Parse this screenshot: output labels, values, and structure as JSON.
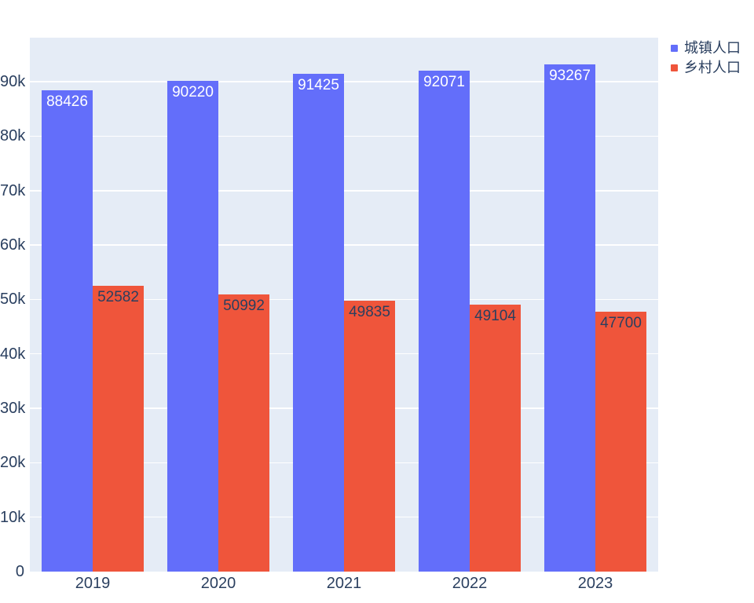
{
  "chart_data": {
    "type": "bar",
    "title": "",
    "xlabel": "",
    "ylabel": "",
    "categories": [
      "2019",
      "2020",
      "2021",
      "2022",
      "2023"
    ],
    "series": [
      {
        "key": "urban-population",
        "name": "城镇人口",
        "values": [
          88426,
          90220,
          91425,
          92071,
          93267
        ],
        "color": "#636EFA",
        "label_color": "#ffffff"
      },
      {
        "key": "rural-population",
        "name": "乡村人口",
        "values": [
          52582,
          50992,
          49835,
          49104,
          47700
        ],
        "color": "#EF553B",
        "label_color": "#2a3f5f"
      }
    ],
    "ylim": [
      0,
      98100
    ],
    "yticks": [
      {
        "value": 0,
        "label": "0"
      },
      {
        "value": 10000,
        "label": "10k"
      },
      {
        "value": 20000,
        "label": "20k"
      },
      {
        "value": 30000,
        "label": "30k"
      },
      {
        "value": 40000,
        "label": "40k"
      },
      {
        "value": 50000,
        "label": "50k"
      },
      {
        "value": 60000,
        "label": "60k"
      },
      {
        "value": 70000,
        "label": "70k"
      },
      {
        "value": 80000,
        "label": "80k"
      },
      {
        "value": 90000,
        "label": "90k"
      }
    ],
    "grid": true,
    "legend_position": "top-right",
    "plot_bg": "#E5ECF6",
    "grid_color": "#FFFFFF",
    "font_color": "#2a3f5f"
  }
}
